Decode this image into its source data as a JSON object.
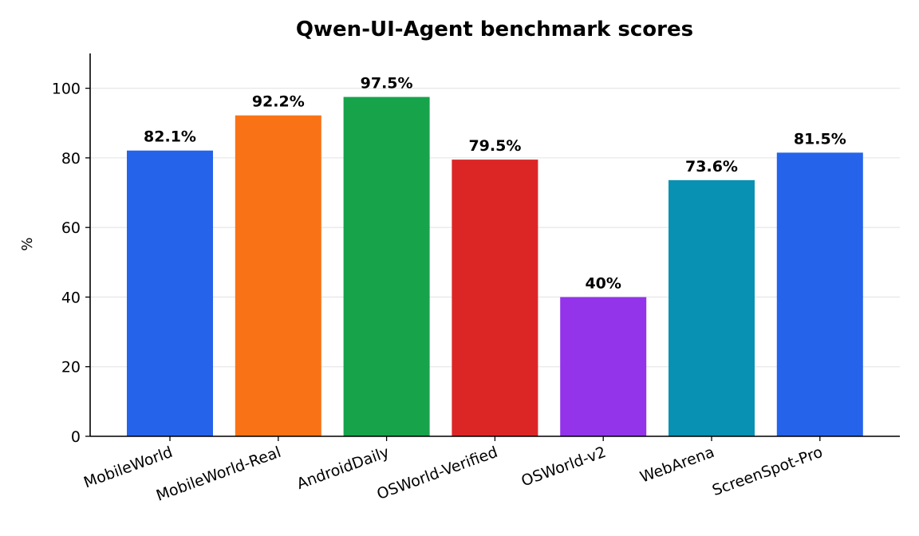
{
  "chart_data": {
    "type": "bar",
    "title": "Qwen-UI-Agent benchmark scores",
    "xlabel": "",
    "ylabel": "%",
    "ylim": [
      0,
      110
    ],
    "yticks": [
      0,
      20,
      40,
      60,
      80,
      100
    ],
    "grid": "horizontal",
    "legend": "none",
    "categories": [
      "MobileWorld",
      "MobileWorld-Real",
      "AndroidDaily",
      "OSWorld-Verified",
      "OSWorld-v2",
      "WebArena",
      "ScreenSpot-Pro"
    ],
    "values": [
      82.1,
      92.2,
      97.5,
      79.5,
      40,
      73.6,
      81.5
    ],
    "data_labels": [
      "82.1%",
      "92.2%",
      "97.5%",
      "79.5%",
      "40%",
      "73.6%",
      "81.5%"
    ],
    "colors": [
      "#2563eb",
      "#f97316",
      "#16a34a",
      "#dc2626",
      "#9333ea",
      "#0891b2",
      "#2563eb"
    ]
  }
}
